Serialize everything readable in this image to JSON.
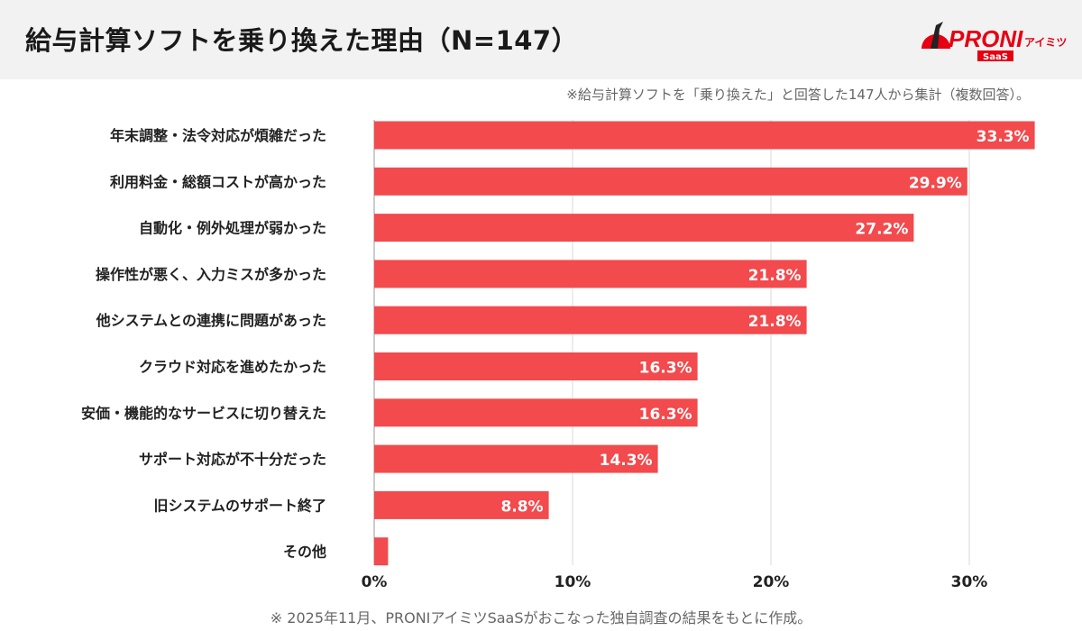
{
  "header": {
    "title": "給与計算ソフトを乗り換えた理由（N=147）",
    "logo_text": "PRONIアイミツ SaaS"
  },
  "note": "※給与計算ソフトを「乗り換えた」と回答した147人から集計（複数回答）。",
  "footer": "※ 2025年11月、PRONIアイミツSaaSがおこなった独自調査の結果をもとに作成。",
  "chart_data": {
    "type": "bar",
    "orientation": "horizontal",
    "title": "給与計算ソフトを乗り換えた理由（N=147）",
    "categories": [
      "年末調整・法令対応が煩雑だった",
      "利用料金・総額コストが高かった",
      "自動化・例外処理が弱かった",
      "操作性が悪く、入力ミスが多かった",
      "他システムとの連携に問題があった",
      "クラウド対応を進めたかった",
      "安価・機能的なサービスに切り替えた",
      "サポート対応が不十分だった",
      "旧システムのサポート終了",
      "その他"
    ],
    "values": [
      33.3,
      29.9,
      27.2,
      21.8,
      21.8,
      16.3,
      16.3,
      14.3,
      8.8,
      0.7
    ],
    "data_labels": [
      "33.3%",
      "29.9%",
      "27.2%",
      "21.8%",
      "21.8%",
      "16.3%",
      "16.3%",
      "14.3%",
      "8.8%",
      ""
    ],
    "xlim": [
      0,
      35
    ],
    "xticks": [
      0,
      10,
      20,
      30
    ],
    "xtick_labels": [
      "0%",
      "10%",
      "20%",
      "30%"
    ],
    "grid": "vertical",
    "bar_color": "#f24a4d"
  }
}
